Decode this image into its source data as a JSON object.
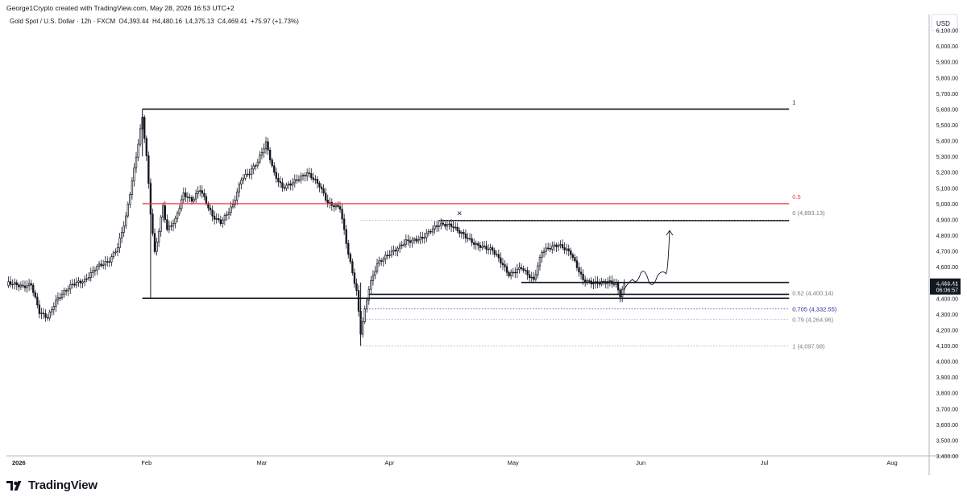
{
  "header": {
    "attribution": "George1Crypto created with TradingView.com, May 28, 2026 16:53 UTC+2",
    "symbol": "Gold Spot / U.S. Dollar · 12h · FXCM",
    "open": "O4,393.44",
    "high": "H4,480.16",
    "low": "L4,375.13",
    "close": "C4,469.41",
    "change": "+75.97 (+1.73%)"
  },
  "footer": {
    "brand": "TradingView"
  },
  "colors": {
    "up": "#131722",
    "down": "#131722",
    "fib_mid": "#f23645",
    "fib_705": "#2a2e9f",
    "fib_label": "#787b86",
    "grid": "#e0e3eb"
  },
  "chart_data": {
    "type": "candlestick",
    "currency": "USD",
    "ylim": [
      3400,
      6200
    ],
    "y_ticks": [
      3400,
      3500,
      3600,
      3700,
      3800,
      3900,
      4000,
      4100,
      4200,
      4300,
      4400,
      4500,
      4600,
      4700,
      4800,
      4900,
      5000,
      5100,
      5200,
      5300,
      5400,
      5500,
      5600,
      5700,
      5800,
      5900,
      6000,
      6100
    ],
    "y_tick_labels": [
      "3,400.00",
      "3,500.00",
      "3,600.00",
      "3,700.00",
      "3,800.00",
      "3,900.00",
      "4,000.00",
      "4,100.00",
      "4,200.00",
      "4,300.00",
      "4,400.00",
      "4,500.00",
      "4,600.00",
      "4,700.00",
      "4,800.00",
      "4,900.00",
      "5,000.00",
      "5,100.00",
      "5,200.00",
      "5,300.00",
      "5,400.00",
      "5,500.00",
      "5,600.00",
      "5,700.00",
      "5,800.00",
      "5,900.00",
      "6,000.00",
      "6,100.00"
    ],
    "x_range": [
      "2025-12-29",
      "2026-08-10"
    ],
    "x_ticks": [
      {
        "date": "2026-01-01",
        "label": "2026"
      },
      {
        "date": "2026-02-01",
        "label": "Feb"
      },
      {
        "date": "2026-03-01",
        "label": "Mar"
      },
      {
        "date": "2026-04-01",
        "label": "Apr"
      },
      {
        "date": "2026-05-01",
        "label": "May"
      },
      {
        "date": "2026-06-01",
        "label": "Jun"
      },
      {
        "date": "2026-07-01",
        "label": "Jul"
      },
      {
        "date": "2026-08-01",
        "label": "Aug"
      }
    ],
    "price_path": [
      [
        "2025-12-29",
        4480
      ],
      [
        "2026-01-02",
        4470
      ],
      [
        "2026-01-04",
        4500
      ],
      [
        "2026-01-06",
        4330
      ],
      [
        "2026-01-08",
        4290
      ],
      [
        "2026-01-10",
        4380
      ],
      [
        "2026-01-14",
        4470
      ],
      [
        "2026-01-17",
        4510
      ],
      [
        "2026-01-20",
        4620
      ],
      [
        "2026-01-23",
        4650
      ],
      [
        "2026-01-25",
        4720
      ],
      [
        "2026-01-27",
        4900
      ],
      [
        "2026-01-29",
        5200
      ],
      [
        "2026-01-31",
        5540
      ],
      [
        "2026-02-01",
        5300
      ],
      [
        "2026-02-02",
        4950
      ],
      [
        "2026-02-03",
        4700
      ],
      [
        "2026-02-05",
        5000
      ],
      [
        "2026-02-06",
        4850
      ],
      [
        "2026-02-08",
        4900
      ],
      [
        "2026-02-10",
        5050
      ],
      [
        "2026-02-12",
        5000
      ],
      [
        "2026-02-14",
        5080
      ],
      [
        "2026-02-17",
        4930
      ],
      [
        "2026-02-19",
        4900
      ],
      [
        "2026-02-22",
        5000
      ],
      [
        "2026-02-24",
        5150
      ],
      [
        "2026-02-26",
        5180
      ],
      [
        "2026-02-28",
        5250
      ],
      [
        "2026-03-02",
        5380
      ],
      [
        "2026-03-04",
        5200
      ],
      [
        "2026-03-06",
        5120
      ],
      [
        "2026-03-09",
        5150
      ],
      [
        "2026-03-12",
        5180
      ],
      [
        "2026-03-15",
        5100
      ],
      [
        "2026-03-17",
        5000
      ],
      [
        "2026-03-20",
        4990
      ],
      [
        "2026-03-22",
        4700
      ],
      [
        "2026-03-24",
        4450
      ],
      [
        "2026-03-25",
        4180
      ],
      [
        "2026-03-27",
        4450
      ],
      [
        "2026-03-29",
        4600
      ],
      [
        "2026-04-01",
        4680
      ],
      [
        "2026-04-05",
        4780
      ],
      [
        "2026-04-09",
        4780
      ],
      [
        "2026-04-13",
        4850
      ],
      [
        "2026-04-16",
        4860
      ],
      [
        "2026-04-19",
        4820
      ],
      [
        "2026-04-22",
        4750
      ],
      [
        "2026-04-26",
        4690
      ],
      [
        "2026-04-30",
        4540
      ],
      [
        "2026-05-03",
        4610
      ],
      [
        "2026-05-06",
        4530
      ],
      [
        "2026-05-08",
        4700
      ],
      [
        "2026-05-12",
        4720
      ],
      [
        "2026-05-15",
        4680
      ],
      [
        "2026-05-18",
        4530
      ],
      [
        "2026-05-21",
        4510
      ],
      [
        "2026-05-24",
        4500
      ],
      [
        "2026-05-26",
        4470
      ],
      [
        "2026-05-27",
        4400
      ],
      [
        "2026-05-28",
        4469
      ]
    ],
    "horizontal_levels": [
      {
        "price": 5600,
        "from": "2026-01-31",
        "to": "2026-07-07",
        "style": "solid",
        "label": "1"
      },
      {
        "price": 4400,
        "from": "2026-01-31",
        "to": "2026-07-07",
        "style": "solid",
        "label": ""
      },
      {
        "price": 4893.13,
        "from": "2026-04-13",
        "to": "2026-07-07",
        "style": "solid",
        "label": "0 (4,893.13)"
      },
      {
        "price": 4500,
        "from": "2026-05-03",
        "to": "2026-07-07",
        "style": "solid",
        "label": ""
      },
      {
        "price": 4425,
        "from": "2026-03-27",
        "to": "2026-07-07",
        "style": "solid",
        "label": ""
      }
    ],
    "fib_levels": [
      {
        "ratio": "0.5",
        "price": 5000,
        "label": "0.5",
        "style": "solid",
        "color": "#f23645"
      },
      {
        "ratio": "0",
        "price": 4893.13,
        "label": "0 (4,893.13)",
        "style": "dotted"
      },
      {
        "ratio": "0.62",
        "price": 4400.14,
        "label": "0.62 (4,400.14)",
        "style": "solid"
      },
      {
        "ratio": "0.705",
        "price": 4332.55,
        "label": "0.705 (4,332.55)",
        "style": "dotted",
        "color": "#2a2e9f"
      },
      {
        "ratio": "0.79",
        "price": 4264.96,
        "label": "0.79 (4,264.96)",
        "style": "dotted"
      },
      {
        "ratio": "1",
        "price": 4097.98,
        "label": "1 (4,097.98)",
        "style": "dotted"
      }
    ],
    "last_price_label": "4,469.41",
    "countdown_label": "06:06:57",
    "projection_path": [
      [
        "2026-05-28",
        4460
      ],
      [
        "2026-05-30",
        4520
      ],
      [
        "2026-06-01",
        4560
      ],
      [
        "2026-06-03",
        4500
      ],
      [
        "2026-06-05",
        4540
      ],
      [
        "2026-06-07",
        4560
      ],
      [
        "2026-06-08",
        4830
      ]
    ],
    "marker": {
      "date": "2026-04-18",
      "price": 4935,
      "symbol": "×"
    }
  }
}
